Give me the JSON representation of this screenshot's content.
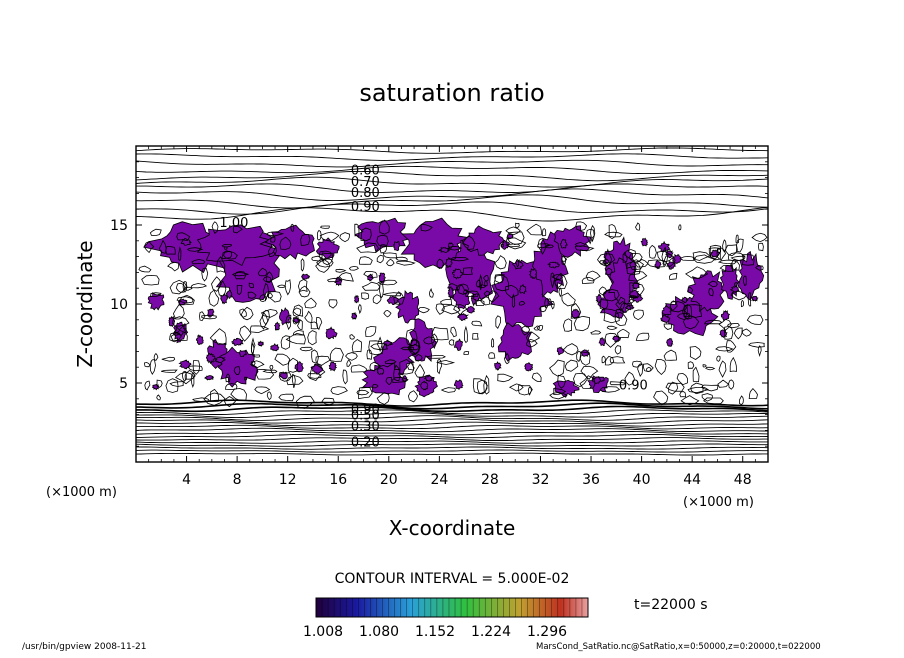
{
  "chart_data": {
    "type": "contour",
    "title": "saturation ratio",
    "xlabel": "X-coordinate",
    "ylabel": "Z-coordinate",
    "x_unit": "(×1000 m)",
    "y_unit": "(×1000 m)",
    "x_ticks": [
      4,
      8,
      12,
      16,
      20,
      24,
      28,
      32,
      36,
      40,
      44,
      48
    ],
    "y_ticks": [
      5,
      10,
      15
    ],
    "xlim": [
      0,
      50
    ],
    "ylim": [
      0,
      20
    ],
    "contour_labels": [
      {
        "text": "0.60",
        "x": 17.0,
        "z": 18.5
      },
      {
        "text": "0.70",
        "x": 17.0,
        "z": 17.8
      },
      {
        "text": "0.80",
        "x": 17.0,
        "z": 17.1
      },
      {
        "text": "0.90",
        "x": 17.0,
        "z": 16.2
      },
      {
        "text": "1.00",
        "x": 6.6,
        "z": 15.2
      },
      {
        "text": "0.90",
        "x": 38.2,
        "z": 4.9
      },
      {
        "text": "0.90",
        "x": 17.0,
        "z": 3.4
      },
      {
        "text": "0.50",
        "x": 17.0,
        "z": 3.0
      },
      {
        "text": "0.30",
        "x": 17.0,
        "z": 2.3
      },
      {
        "text": "0.20",
        "x": 17.0,
        "z": 1.3
      }
    ],
    "fill_color": "#7a0aa8",
    "contour_interval_text": "CONTOUR INTERVAL = 5.000E-02",
    "colorbar_ticks": [
      "1.008",
      "1.080",
      "1.152",
      "1.224",
      "1.296"
    ],
    "time_text": "t=22000  s"
  },
  "footer": {
    "left": "/usr/bin/gpview   2008-11-21",
    "right": "MarsCond_SatRatio.nc@SatRatio,x=0:50000,z=0:20000,t=022000"
  }
}
